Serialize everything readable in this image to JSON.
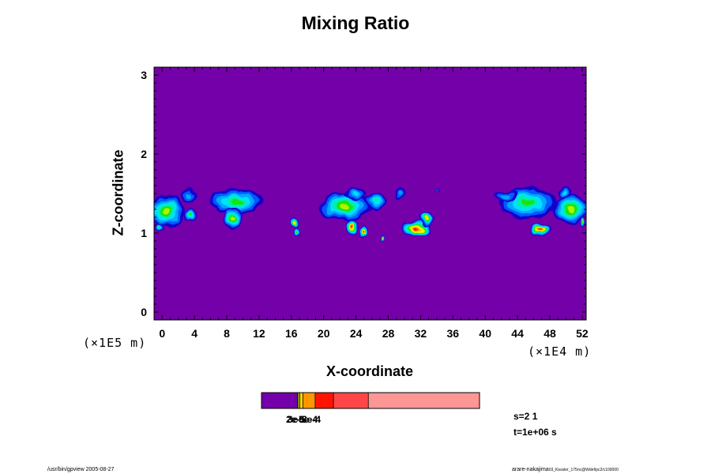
{
  "chart_data": {
    "type": "heatmap",
    "title": "Mixing Ratio",
    "xlabel": "X-coordinate",
    "ylabel": "Z-coordinate",
    "x_factor": "(×1E4 m)",
    "y_factor": "(×1E5 m)",
    "xlim": [
      -1,
      52.5
    ],
    "ylim": [
      -0.1,
      3.1
    ],
    "x_ticks": [
      0,
      4,
      8,
      12,
      16,
      20,
      24,
      28,
      32,
      36,
      40,
      44,
      48,
      52
    ],
    "y_ticks": [
      0,
      1,
      2,
      3
    ],
    "x_tick_labels": [
      "0",
      "4",
      "8",
      "12",
      "16",
      "20",
      "24",
      "28",
      "32",
      "36",
      "40",
      "44",
      "48",
      "52"
    ],
    "y_tick_labels": [
      "0",
      "1",
      "2",
      "3"
    ],
    "background_color": "#7300a8",
    "palette": [
      "#1400c8",
      "#005aff",
      "#00a8ff",
      "#00e0ff",
      "#00f0a8",
      "#14e60a",
      "#b4f000",
      "#ffff00",
      "#ffc800",
      "#ff6400",
      "#ff1400",
      "#ff8c8c"
    ],
    "clouds": [
      {
        "x": 0.5,
        "z": 1.28,
        "rx": 2.3,
        "rz": 0.2,
        "peak": 6
      },
      {
        "x": -0.3,
        "z": 1.06,
        "rx": 0.6,
        "rz": 0.06,
        "peak": 5
      },
      {
        "x": 3.3,
        "z": 1.48,
        "rx": 1.1,
        "rz": 0.08,
        "peak": 2
      },
      {
        "x": 3.5,
        "z": 1.22,
        "rx": 0.8,
        "rz": 0.08,
        "peak": 5
      },
      {
        "x": 9.2,
        "z": 1.4,
        "rx": 3.4,
        "rz": 0.16,
        "peak": 5
      },
      {
        "x": 8.8,
        "z": 1.18,
        "rx": 1.1,
        "rz": 0.15,
        "peak": 6
      },
      {
        "x": 16.5,
        "z": 1.13,
        "rx": 0.6,
        "rz": 0.08,
        "peak": 8
      },
      {
        "x": 16.7,
        "z": 0.99,
        "rx": 0.3,
        "rz": 0.05,
        "peak": 5
      },
      {
        "x": 22.6,
        "z": 1.34,
        "rx": 3.3,
        "rz": 0.18,
        "peak": 6
      },
      {
        "x": 23.8,
        "z": 1.5,
        "rx": 1.4,
        "rz": 0.08,
        "peak": 3
      },
      {
        "x": 23.5,
        "z": 1.08,
        "rx": 0.7,
        "rz": 0.1,
        "peak": 10
      },
      {
        "x": 24.9,
        "z": 1.03,
        "rx": 0.6,
        "rz": 0.07,
        "peak": 10
      },
      {
        "x": 26.5,
        "z": 1.41,
        "rx": 1.4,
        "rz": 0.1,
        "peak": 4
      },
      {
        "x": 27.3,
        "z": 0.93,
        "rx": 0.25,
        "rz": 0.03,
        "peak": 8
      },
      {
        "x": 29.5,
        "z": 1.5,
        "rx": 0.7,
        "rz": 0.08,
        "peak": 2
      },
      {
        "x": 31.6,
        "z": 1.06,
        "rx": 1.8,
        "rz": 0.1,
        "peak": 10
      },
      {
        "x": 32.8,
        "z": 1.17,
        "rx": 0.8,
        "rz": 0.08,
        "peak": 8
      },
      {
        "x": 34.2,
        "z": 1.53,
        "rx": 0.25,
        "rz": 0.03,
        "peak": 1
      },
      {
        "x": 45.3,
        "z": 1.38,
        "rx": 3.6,
        "rz": 0.2,
        "peak": 5
      },
      {
        "x": 42.5,
        "z": 1.47,
        "rx": 1.5,
        "rz": 0.06,
        "peak": 2
      },
      {
        "x": 46.9,
        "z": 1.04,
        "rx": 1.3,
        "rz": 0.08,
        "peak": 10
      },
      {
        "x": 50.6,
        "z": 1.3,
        "rx": 2.2,
        "rz": 0.18,
        "peak": 6
      },
      {
        "x": 49.8,
        "z": 1.52,
        "rx": 0.9,
        "rz": 0.07,
        "peak": 3
      },
      {
        "x": 52.0,
        "z": 1.12,
        "rx": 0.3,
        "rz": 0.05,
        "peak": 6
      }
    ],
    "colorbar": {
      "segments": [
        {
          "color": "#7300a8",
          "start": 0.0,
          "end": 0.165
        },
        {
          "color": "#b4f000",
          "start": 0.165,
          "end": 0.17
        },
        {
          "color": "#ffff00",
          "start": 0.17,
          "end": 0.176
        },
        {
          "color": "#ffd200",
          "start": 0.176,
          "end": 0.19
        },
        {
          "color": "#ff9600",
          "start": 0.19,
          "end": 0.246
        },
        {
          "color": "#ff1400",
          "start": 0.246,
          "end": 0.33
        },
        {
          "color": "#ff4646",
          "start": 0.33,
          "end": 0.49
        },
        {
          "color": "#ff9696",
          "start": 0.49,
          "end": 1.0
        }
      ],
      "labels": [
        "2e-5",
        "3e-5",
        "5e-4",
        "8e-4"
      ]
    }
  },
  "info": {
    "s_label": "s=2 1",
    "t_label": "t=1e+06 s"
  },
  "footer": {
    "left": "/usr/bin/gpview 2005-08-27",
    "right_main": "arare-nakajima",
    "right_small": "03_Kessler_175nc@Wdef/pc2/c100000"
  }
}
